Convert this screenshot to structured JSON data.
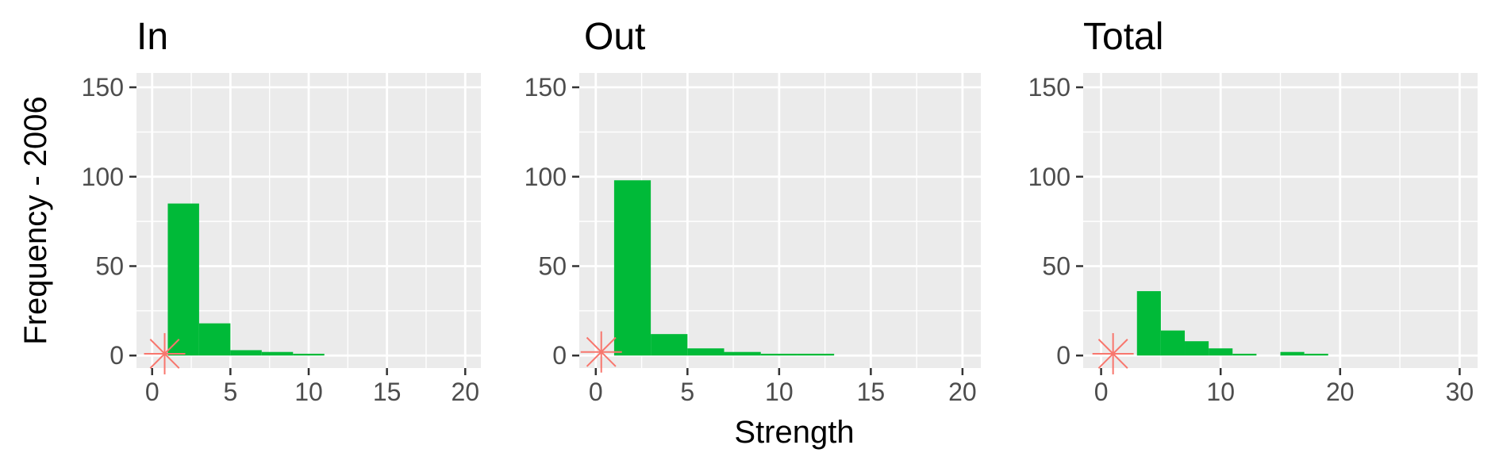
{
  "chart_data": [
    {
      "type": "bar",
      "title": "In",
      "xlim": [
        -1,
        21
      ],
      "ylim": [
        -7,
        158
      ],
      "xticks": [
        0,
        5,
        10,
        15,
        20
      ],
      "yticks": [
        0,
        50,
        100,
        150
      ],
      "bins": [
        {
          "x0": 1,
          "x1": 3,
          "count": 85
        },
        {
          "x0": 3,
          "x1": 5,
          "count": 18
        },
        {
          "x0": 5,
          "x1": 7,
          "count": 3
        },
        {
          "x0": 7,
          "x1": 9,
          "count": 2
        },
        {
          "x0": 9,
          "x1": 11,
          "count": 1
        }
      ],
      "marker": {
        "x": 0.8,
        "y": 1
      }
    },
    {
      "type": "bar",
      "title": "Out",
      "xlim": [
        -0.9,
        21
      ],
      "ylim": [
        -7,
        158
      ],
      "xticks": [
        0,
        5,
        10,
        15,
        20
      ],
      "yticks": [
        0,
        50,
        100,
        150
      ],
      "bins": [
        {
          "x0": 1,
          "x1": 3,
          "count": 98
        },
        {
          "x0": 3,
          "x1": 5,
          "count": 12
        },
        {
          "x0": 5,
          "x1": 7,
          "count": 4
        },
        {
          "x0": 7,
          "x1": 9,
          "count": 2
        },
        {
          "x0": 9,
          "x1": 11,
          "count": 1
        },
        {
          "x0": 11,
          "x1": 13,
          "count": 1
        }
      ],
      "marker": {
        "x": 0.3,
        "y": 2
      }
    },
    {
      "type": "bar",
      "title": "Total",
      "xlim": [
        -1.5,
        31.5
      ],
      "ylim": [
        -7,
        158
      ],
      "xticks": [
        0,
        10,
        20,
        30
      ],
      "yticks": [
        0,
        50,
        100,
        150
      ],
      "bins": [
        {
          "x0": 3,
          "x1": 5,
          "count": 36
        },
        {
          "x0": 5,
          "x1": 7,
          "count": 14
        },
        {
          "x0": 7,
          "x1": 9,
          "count": 8
        },
        {
          "x0": 9,
          "x1": 11,
          "count": 4
        },
        {
          "x0": 11,
          "x1": 13,
          "count": 1
        },
        {
          "x0": 15,
          "x1": 17,
          "count": 2
        },
        {
          "x0": 17,
          "x1": 19,
          "count": 1
        }
      ],
      "marker": {
        "x": 1,
        "y": 1
      }
    }
  ],
  "ylabel": "Frequency - 2006",
  "xlabel": "Strength",
  "colors": {
    "bar": "#00ba38",
    "marker": "#f8766d",
    "panel_bg": "#ebebeb",
    "grid": "#ffffff",
    "tick_text": "#4d4d4d"
  }
}
